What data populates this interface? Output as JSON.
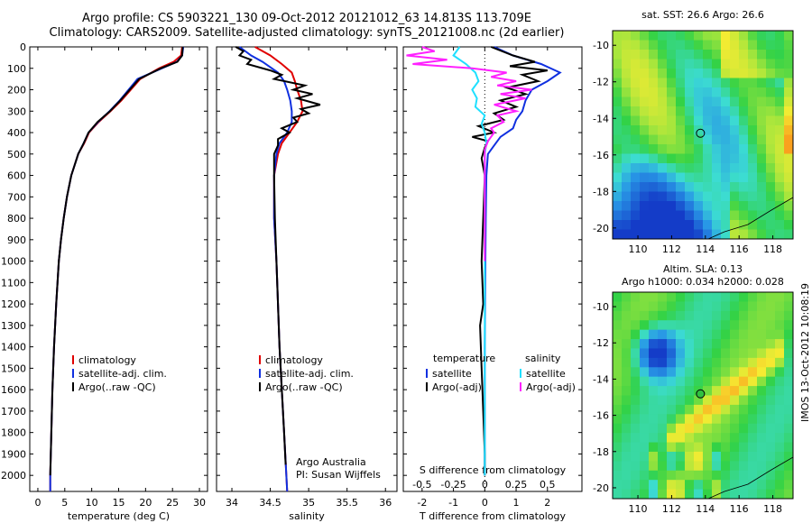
{
  "header": {
    "line1": "Argo profile: CS 5903221_130 09-Oct-2012 20121012_63 14.813S 113.709E",
    "line2": "Climatology: CARS2009. Satellite-adjusted climatology: synTS_20121008.nc (2d earlier)"
  },
  "footer_stamp": "IMOS 13-Oct-2012 10:08:19",
  "colors": {
    "climatology": "#e00000",
    "satellite": "#1030e0",
    "argo": "#000000",
    "sat_s": "#20e0ff",
    "argo_s": "#ff20ff"
  },
  "chart_data": [
    {
      "id": "temperature",
      "type": "line",
      "xlabel": "temperature (deg C)",
      "ylabel": "",
      "xlim": [
        -1.5,
        31.5
      ],
      "ylim": [
        2075,
        0
      ],
      "xticks": [
        0,
        5,
        10,
        15,
        20,
        25,
        30
      ],
      "yticks": [
        0,
        100,
        200,
        300,
        400,
        500,
        600,
        700,
        800,
        900,
        1000,
        1100,
        1200,
        1300,
        1400,
        1500,
        1600,
        1700,
        1800,
        1900,
        2000
      ],
      "legend": [
        "climatology",
        "satellite-adj. clim.",
        "Argo(..raw -QC)"
      ],
      "series": [
        {
          "name": "climatology",
          "color": "#e00000",
          "points": [
            [
              26.8,
              0
            ],
            [
              26.6,
              40
            ],
            [
              25.2,
              70
            ],
            [
              22.5,
              100
            ],
            [
              19,
              150
            ],
            [
              15.5,
              250
            ],
            [
              13.5,
              300
            ],
            [
              11.3,
              350
            ],
            [
              9.5,
              400
            ],
            [
              8.6,
              450
            ],
            [
              7.5,
              500
            ],
            [
              6.2,
              600
            ],
            [
              5.4,
              700
            ],
            [
              4.8,
              800
            ],
            [
              4.3,
              900
            ],
            [
              3.9,
              1000
            ],
            [
              3.4,
              1200
            ],
            [
              3.0,
              1400
            ],
            [
              2.7,
              1600
            ],
            [
              2.5,
              1800
            ],
            [
              2.3,
              2000
            ],
            [
              2.3,
              2075
            ]
          ]
        },
        {
          "name": "satellite-adj. clim.",
          "color": "#1030e0",
          "points": [
            [
              27.0,
              0
            ],
            [
              26.8,
              40
            ],
            [
              25.8,
              70
            ],
            [
              23,
              100
            ],
            [
              18.5,
              150
            ],
            [
              15.2,
              250
            ],
            [
              13.3,
              300
            ],
            [
              11.2,
              350
            ],
            [
              9.4,
              400
            ],
            [
              8.5,
              450
            ],
            [
              7.5,
              500
            ],
            [
              6.2,
              600
            ],
            [
              5.4,
              700
            ],
            [
              4.8,
              800
            ],
            [
              4.3,
              900
            ],
            [
              3.9,
              1000
            ],
            [
              3.4,
              1200
            ],
            [
              3.0,
              1400
            ],
            [
              2.7,
              1600
            ],
            [
              2.5,
              1800
            ],
            [
              2.3,
              2000
            ],
            [
              2.3,
              2075
            ]
          ]
        },
        {
          "name": "Argo(..raw -QC)",
          "color": "#000000",
          "points": [
            [
              26.9,
              0
            ],
            [
              26.8,
              40
            ],
            [
              25.9,
              70
            ],
            [
              22.8,
              100
            ],
            [
              18.8,
              150
            ],
            [
              15.3,
              250
            ],
            [
              13.4,
              300
            ],
            [
              11.1,
              350
            ],
            [
              9.4,
              400
            ],
            [
              8.5,
              450
            ],
            [
              7.5,
              500
            ],
            [
              6.2,
              600
            ],
            [
              5.4,
              700
            ],
            [
              4.8,
              800
            ],
            [
              4.3,
              900
            ],
            [
              3.9,
              1000
            ],
            [
              3.4,
              1200
            ],
            [
              3.0,
              1400
            ],
            [
              2.7,
              1600
            ],
            [
              2.5,
              1800
            ],
            [
              2.3,
              2000
            ]
          ]
        }
      ]
    },
    {
      "id": "salinity",
      "type": "line",
      "xlabel": "salinity",
      "xlim": [
        33.8,
        36.15
      ],
      "ylim": [
        2075,
        0
      ],
      "xticks": [
        34,
        34.5,
        35,
        35.5,
        36
      ],
      "legend": [
        "climatology",
        "satellite-adj. clim.",
        "Argo(..raw -QC)"
      ],
      "annotation": [
        "Argo Australia",
        "PI: Susan Wijffels"
      ],
      "series": [
        {
          "name": "climatology",
          "color": "#e00000",
          "points": [
            [
              34.3,
              0
            ],
            [
              34.5,
              40
            ],
            [
              34.65,
              80
            ],
            [
              34.78,
              120
            ],
            [
              34.82,
              160
            ],
            [
              34.85,
              200
            ],
            [
              34.9,
              250
            ],
            [
              34.92,
              300
            ],
            [
              34.85,
              350
            ],
            [
              34.75,
              400
            ],
            [
              34.65,
              450
            ],
            [
              34.6,
              500
            ],
            [
              34.55,
              600
            ],
            [
              34.55,
              800
            ],
            [
              34.58,
              1000
            ],
            [
              34.62,
              1400
            ],
            [
              34.68,
              1800
            ],
            [
              34.72,
              2075
            ]
          ]
        },
        {
          "name": "satellite-adj. clim.",
          "color": "#1030e0",
          "points": [
            [
              34.1,
              0
            ],
            [
              34.25,
              40
            ],
            [
              34.4,
              70
            ],
            [
              34.6,
              120
            ],
            [
              34.68,
              160
            ],
            [
              34.72,
              200
            ],
            [
              34.76,
              250
            ],
            [
              34.78,
              300
            ],
            [
              34.78,
              350
            ],
            [
              34.72,
              400
            ],
            [
              34.62,
              450
            ],
            [
              34.58,
              500
            ],
            [
              34.55,
              600
            ],
            [
              34.55,
              800
            ],
            [
              34.58,
              1000
            ],
            [
              34.62,
              1400
            ],
            [
              34.68,
              1800
            ],
            [
              34.72,
              2075
            ]
          ]
        },
        {
          "name": "Argo(..raw -QC)",
          "color": "#000000",
          "points": [
            [
              34.05,
              0
            ],
            [
              34.15,
              20
            ],
            [
              34.1,
              40
            ],
            [
              34.25,
              60
            ],
            [
              34.2,
              80
            ],
            [
              34.5,
              110
            ],
            [
              34.65,
              130
            ],
            [
              34.55,
              150
            ],
            [
              34.95,
              180
            ],
            [
              34.8,
              200
            ],
            [
              35.05,
              220
            ],
            [
              34.85,
              240
            ],
            [
              35.15,
              270
            ],
            [
              34.9,
              290
            ],
            [
              35.0,
              310
            ],
            [
              34.8,
              330
            ],
            [
              34.85,
              350
            ],
            [
              34.65,
              380
            ],
            [
              34.75,
              400
            ],
            [
              34.6,
              430
            ],
            [
              34.6,
              460
            ],
            [
              34.55,
              500
            ],
            [
              34.55,
              600
            ],
            [
              34.56,
              800
            ],
            [
              34.58,
              1000
            ],
            [
              34.62,
              1400
            ],
            [
              34.68,
              1800
            ],
            [
              34.7,
              1950
            ]
          ]
        }
      ]
    },
    {
      "id": "differences",
      "type": "line",
      "xlabel_top": "S difference from climatology",
      "xlabel": "T difference from climatology",
      "xlim_T": [
        -2.6,
        3.1
      ],
      "xticks_T": [
        -2,
        -1,
        0,
        1,
        2
      ],
      "xticks_S": [
        -0.5,
        -0.25,
        0,
        0.25,
        0.5
      ],
      "xticklabels_S": [
        "-0.5",
        "-0.25",
        "0",
        "0.25",
        "0.5"
      ],
      "S_scale_note": "S diff x4 = T diff axis units",
      "ylim": [
        2075,
        0
      ],
      "legend_headers": [
        "temperature",
        "salinity"
      ],
      "legend": [
        "satellite",
        "Argo(-adj)",
        "satellite",
        "Argo(-adj)"
      ],
      "series": [
        {
          "name": "satellite (temperature)",
          "color": "#1030e0",
          "points": [
            [
              0.3,
              0
            ],
            [
              0.9,
              40
            ],
            [
              1.8,
              80
            ],
            [
              2.4,
              120
            ],
            [
              2.0,
              160
            ],
            [
              1.5,
              200
            ],
            [
              1.3,
              250
            ],
            [
              1.2,
              300
            ],
            [
              1.0,
              340
            ],
            [
              0.9,
              380
            ],
            [
              0.5,
              420
            ],
            [
              0.3,
              460
            ],
            [
              0.1,
              500
            ],
            [
              0.05,
              600
            ],
            [
              0.03,
              800
            ],
            [
              0.02,
              1000
            ],
            [
              0.0,
              1400
            ],
            [
              0.0,
              1800
            ],
            [
              0.0,
              2000
            ]
          ]
        },
        {
          "name": "Argo(-adj) (temperature)",
          "color": "#000000",
          "points": [
            [
              0.2,
              0
            ],
            [
              0.9,
              40
            ],
            [
              1.6,
              70
            ],
            [
              0.8,
              90
            ],
            [
              2.0,
              110
            ],
            [
              1.2,
              130
            ],
            [
              1.7,
              160
            ],
            [
              0.7,
              190
            ],
            [
              1.3,
              220
            ],
            [
              0.5,
              250
            ],
            [
              1.0,
              280
            ],
            [
              0.3,
              310
            ],
            [
              0.6,
              340
            ],
            [
              -0.2,
              370
            ],
            [
              0.3,
              400
            ],
            [
              -0.4,
              420
            ],
            [
              0.1,
              440
            ],
            [
              0.0,
              470
            ],
            [
              -0.1,
              520
            ],
            [
              0.0,
              600
            ],
            [
              -0.05,
              800
            ],
            [
              -0.1,
              1000
            ],
            [
              -0.05,
              1200
            ],
            [
              -0.15,
              1300
            ],
            [
              -0.1,
              1500
            ],
            [
              -0.05,
              1700
            ],
            [
              0.0,
              1900
            ],
            [
              0.0,
              2000
            ]
          ]
        },
        {
          "name": "satellite (salinity)",
          "color": "#20e0ff",
          "points": [
            [
              -0.8,
              0
            ],
            [
              -1.0,
              40
            ],
            [
              -0.6,
              80
            ],
            [
              -0.3,
              120
            ],
            [
              -0.2,
              160
            ],
            [
              -0.4,
              200
            ],
            [
              -0.25,
              240
            ],
            [
              -0.3,
              280
            ],
            [
              0.0,
              320
            ],
            [
              -0.1,
              360
            ],
            [
              0.0,
              400
            ],
            [
              0.05,
              450
            ],
            [
              0.0,
              500
            ],
            [
              0.0,
              800
            ],
            [
              0.0,
              1200
            ],
            [
              0.0,
              1600
            ],
            [
              0.0,
              2000
            ]
          ]
        },
        {
          "name": "Argo(-adj) (salinity)",
          "color": "#ff20ff",
          "points": [
            [
              -2.0,
              0
            ],
            [
              -1.6,
              20
            ],
            [
              -2.5,
              40
            ],
            [
              -1.2,
              60
            ],
            [
              -2.3,
              80
            ],
            [
              -0.4,
              100
            ],
            [
              0.7,
              120
            ],
            [
              0.2,
              140
            ],
            [
              1.0,
              160
            ],
            [
              0.4,
              180
            ],
            [
              1.5,
              200
            ],
            [
              0.5,
              220
            ],
            [
              1.3,
              240
            ],
            [
              0.3,
              270
            ],
            [
              1.0,
              300
            ],
            [
              0.4,
              320
            ],
            [
              0.6,
              350
            ],
            [
              0.2,
              380
            ],
            [
              0.3,
              400
            ],
            [
              0.1,
              440
            ],
            [
              0.0,
              480
            ],
            [
              0.0,
              600
            ],
            [
              0.0,
              1000
            ]
          ]
        }
      ]
    },
    {
      "id": "sst_map",
      "type": "heatmap",
      "title": "sat. SST: 26.6 Argo: 26.6",
      "xlim": [
        108.5,
        119.2
      ],
      "ylim": [
        -20.6,
        -9.2
      ],
      "xticks": [
        110,
        112,
        114,
        116,
        118
      ],
      "yticks": [
        -10,
        -12,
        -14,
        -16,
        -18,
        -20
      ],
      "argo_position": [
        113.709,
        -14.813
      ]
    },
    {
      "id": "sla_map",
      "type": "heatmap",
      "title": "Altim. SLA: 0.13",
      "subtitle": "Argo h1000: 0.034 h2000: 0.028",
      "xlim": [
        108.5,
        119.2
      ],
      "ylim": [
        -20.6,
        -9.2
      ],
      "xticks": [
        110,
        112,
        114,
        116,
        118
      ],
      "yticks": [
        -10,
        -12,
        -14,
        -16,
        -18,
        -20
      ],
      "argo_position": [
        113.709,
        -14.813
      ]
    }
  ]
}
